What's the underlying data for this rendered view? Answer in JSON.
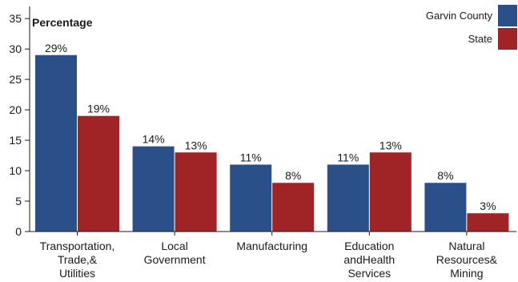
{
  "chart_data": {
    "type": "bar",
    "ylabel": "Percentage",
    "xlabel": "",
    "ylim": [
      0,
      37
    ],
    "yticks": [
      0,
      5,
      10,
      15,
      20,
      25,
      30,
      35
    ],
    "grid": false,
    "legend_position": "top-right",
    "categories": [
      [
        "Transportation,",
        "Trade,&",
        "Utilities"
      ],
      [
        "Local",
        "Government"
      ],
      [
        "Manufacturing"
      ],
      [
        "Education",
        "andHealth",
        "Services"
      ],
      [
        "Natural",
        "Resources&",
        "Mining"
      ]
    ],
    "series": [
      {
        "name": "Garvin County",
        "color": "#2b5089",
        "values": [
          29,
          14,
          11,
          11,
          8
        ],
        "labels": [
          "29%",
          "14%",
          "11%",
          "11%",
          "8%"
        ]
      },
      {
        "name": "State",
        "color": "#a02326",
        "values": [
          19,
          13,
          8,
          13,
          3
        ],
        "labels": [
          "19%",
          "13%",
          "8%",
          "13%",
          "3%"
        ]
      }
    ]
  }
}
